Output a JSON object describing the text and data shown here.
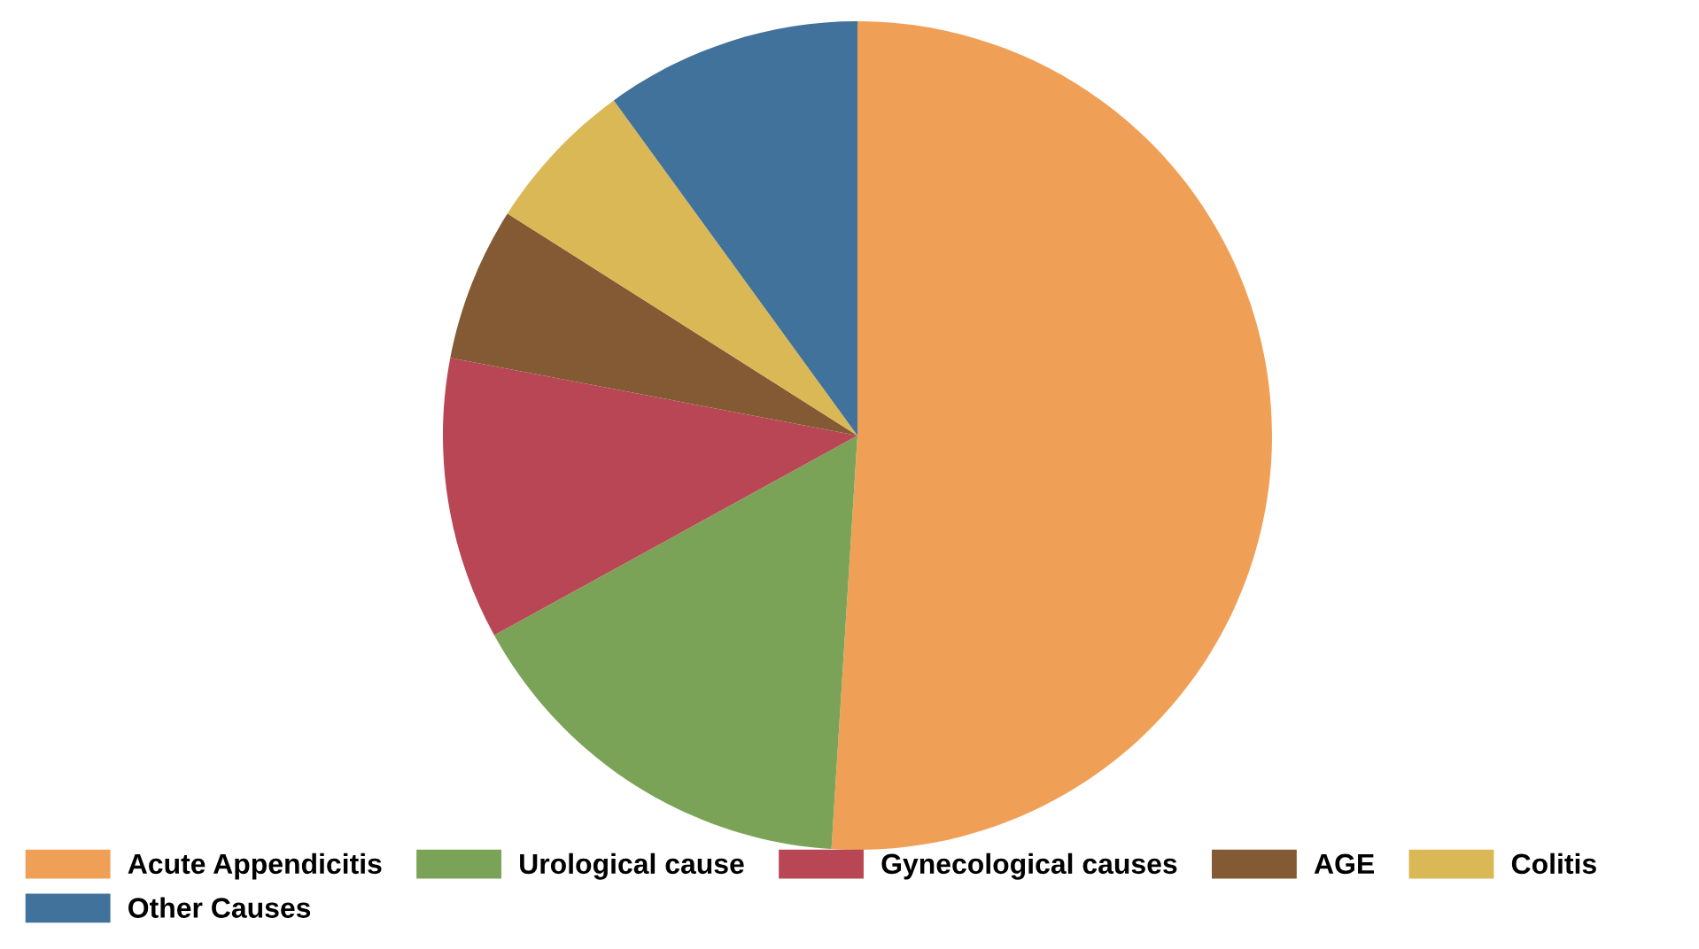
{
  "chart_data": {
    "type": "pie",
    "categories": [
      "Acute Appendicitis",
      "Urological cause",
      "Gynecological causes",
      "AGE",
      "Colitis",
      "Other Causes"
    ],
    "values": [
      51,
      16,
      11,
      6,
      6,
      10
    ],
    "colors": [
      "#f0a056",
      "#7ba357",
      "#b94655",
      "#845a34",
      "#d9b855",
      "#41729b"
    ],
    "legend": "bottom"
  }
}
